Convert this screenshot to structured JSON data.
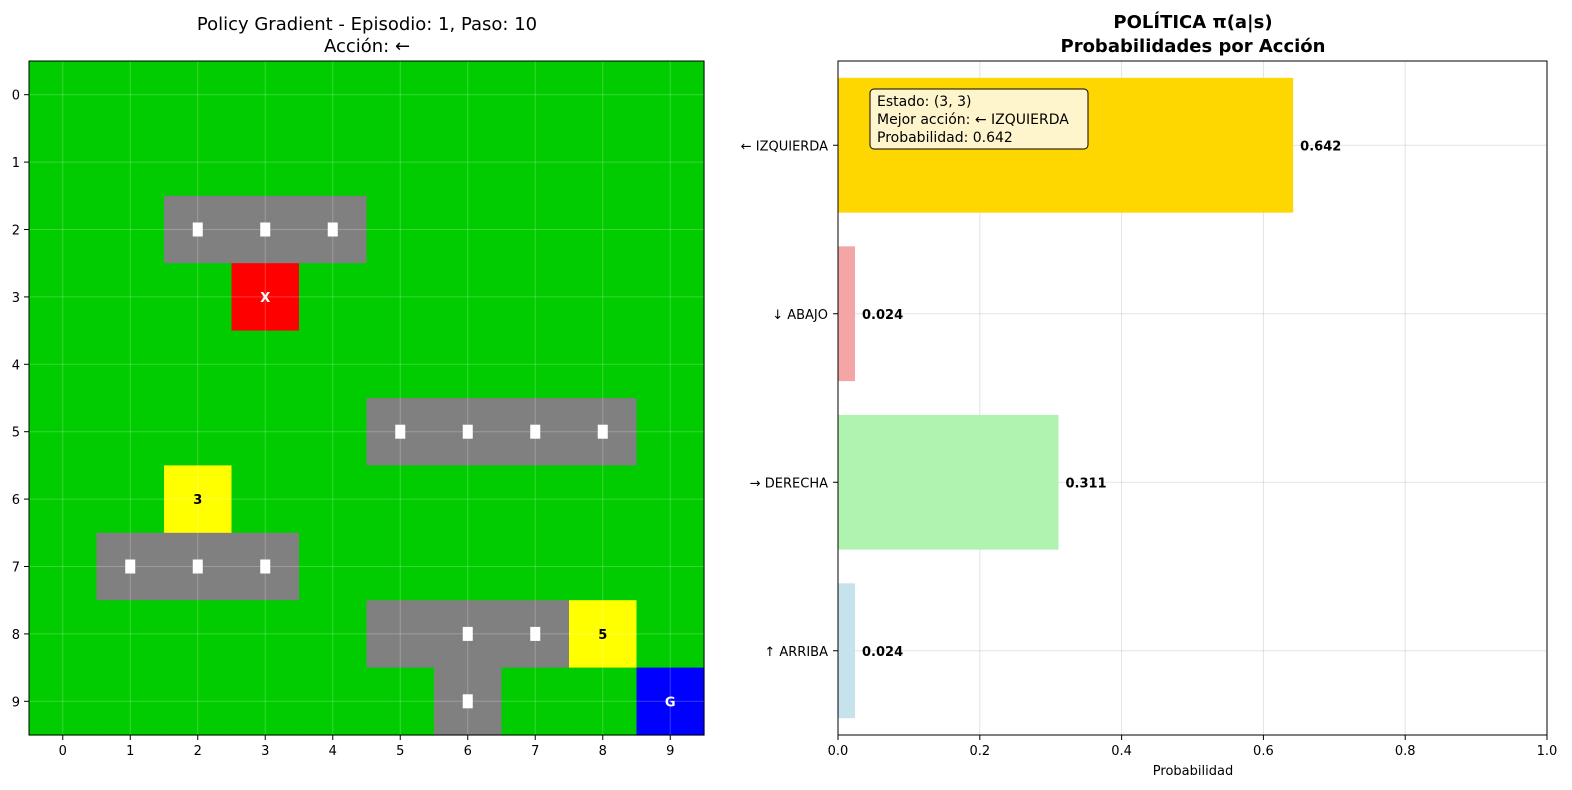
{
  "chart_data": [
    {
      "type": "heatmap",
      "title_line1": "Policy Gradient - Episodio: 1, Paso: 10",
      "title_line2": "Acción: ←",
      "x_ticks": [
        "0",
        "1",
        "2",
        "3",
        "4",
        "5",
        "6",
        "7",
        "8",
        "9"
      ],
      "y_ticks": [
        "0",
        "1",
        "2",
        "3",
        "4",
        "5",
        "6",
        "7",
        "8",
        "9"
      ],
      "grid_rows": 10,
      "grid_cols": 10,
      "colors": {
        "free": "#00cc00",
        "road": "#808080",
        "agent": "#ff0000",
        "bonus": "#ffff00",
        "goal": "#0000ff",
        "marker": "#ffffff"
      },
      "road_cells": [
        [
          2,
          2
        ],
        [
          2,
          3
        ],
        [
          2,
          4
        ],
        [
          5,
          5
        ],
        [
          5,
          6
        ],
        [
          5,
          7
        ],
        [
          5,
          8
        ],
        [
          7,
          1
        ],
        [
          7,
          2
        ],
        [
          7,
          3
        ],
        [
          8,
          5
        ],
        [
          8,
          6
        ],
        [
          8,
          7
        ],
        [
          9,
          6
        ]
      ],
      "road_markers": [
        [
          2,
          2
        ],
        [
          2,
          3
        ],
        [
          2,
          4
        ],
        [
          5,
          5
        ],
        [
          5,
          6
        ],
        [
          5,
          7
        ],
        [
          5,
          8
        ],
        [
          7,
          1
        ],
        [
          7,
          2
        ],
        [
          7,
          3
        ],
        [
          8,
          6
        ],
        [
          8,
          7
        ],
        [
          9,
          6
        ]
      ],
      "agent": {
        "row": 3,
        "col": 3,
        "label": "X"
      },
      "bonus_cells": [
        {
          "row": 6,
          "col": 2,
          "label": "3"
        },
        {
          "row": 8,
          "col": 8,
          "label": "5"
        }
      ],
      "goal": {
        "row": 9,
        "col": 9,
        "label": "G"
      },
      "grid": true
    },
    {
      "type": "bar",
      "orientation": "horizontal",
      "title_line1": "POLÍTICA π(a|s)",
      "title_line2": "Probabilidades por Acción",
      "xlabel": "Probabilidad",
      "xlim": [
        0,
        1.0
      ],
      "x_ticks": [
        "0.0",
        "0.2",
        "0.4",
        "0.6",
        "0.8",
        "1.0"
      ],
      "grid": true,
      "categories": [
        "← IZQUIERDA",
        "↓ ABAJO",
        "→ DERECHA",
        "↑ ARRIBA"
      ],
      "values": [
        0.642,
        0.024,
        0.311,
        0.024
      ],
      "value_labels": [
        "0.642",
        "0.024",
        "0.311",
        "0.024"
      ],
      "bar_colors": [
        "#ffd700",
        "#f4a6a6",
        "#b0f2b0",
        "#c6e2ec"
      ],
      "annotation": {
        "line1": "Estado: (3, 3)",
        "line2": "Mejor acción: ← IZQUIERDA",
        "line3": "Probabilidad: 0.642"
      }
    }
  ]
}
